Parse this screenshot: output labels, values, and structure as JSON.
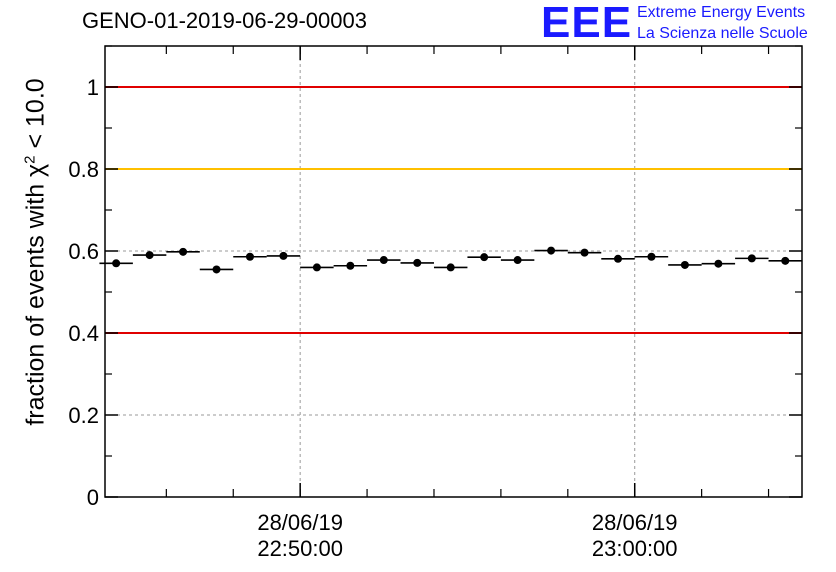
{
  "header": {
    "title": "GENO-01-2019-06-29-00003",
    "logo_mark": "EEE",
    "logo_line1": "Extreme Energy Events",
    "logo_line2": "La Scienza nelle Scuole"
  },
  "colors": {
    "limit_red": "#e00000",
    "limit_yellow": "#ffc000",
    "logo_blue": "#1a1aff",
    "points": "#000000"
  },
  "chart_data": {
    "type": "scatter",
    "title": "GENO-01-2019-06-29-00003",
    "ylabel_prefix": "fraction of events with χ",
    "ylabel_sup": "2",
    "ylabel_suffix": " < 10.0",
    "ylim": [
      0,
      1.1
    ],
    "yticks": [
      0,
      0.2,
      0.4,
      0.6,
      0.8,
      1
    ],
    "ytick_labels": [
      "0",
      "0.2",
      "0.4",
      "0.6",
      "0.8",
      "1"
    ],
    "xlim": [
      "2019-06-28 22:44:10",
      "2019-06-28 23:05:00"
    ],
    "xticks": [
      {
        "x": "2019-06-28 22:50:00",
        "label_date": "28/06/19",
        "label_time": "22:50:00"
      },
      {
        "x": "2019-06-28 23:00:00",
        "label_date": "28/06/19",
        "label_time": "23:00:00"
      }
    ],
    "bin_width_minutes": 1,
    "x": [
      "2019-06-28 22:44:30",
      "2019-06-28 22:45:30",
      "2019-06-28 22:46:30",
      "2019-06-28 22:47:30",
      "2019-06-28 22:48:30",
      "2019-06-28 22:49:30",
      "2019-06-28 22:50:30",
      "2019-06-28 22:51:30",
      "2019-06-28 22:52:30",
      "2019-06-28 22:53:30",
      "2019-06-28 22:54:30",
      "2019-06-28 22:55:30",
      "2019-06-28 22:56:30",
      "2019-06-28 22:57:30",
      "2019-06-28 22:58:30",
      "2019-06-28 22:59:30",
      "2019-06-28 23:00:30",
      "2019-06-28 23:01:30",
      "2019-06-28 23:02:30",
      "2019-06-28 23:03:30",
      "2019-06-28 23:04:30"
    ],
    "y": [
      0.57,
      0.59,
      0.598,
      0.555,
      0.586,
      0.588,
      0.56,
      0.564,
      0.578,
      0.571,
      0.56,
      0.585,
      0.578,
      0.601,
      0.596,
      0.581,
      0.586,
      0.566,
      0.569,
      0.582,
      0.576
    ],
    "reference_lines": [
      {
        "y": 1.0,
        "color": "#e00000"
      },
      {
        "y": 0.8,
        "color": "#ffc000"
      },
      {
        "y": 0.4,
        "color": "#e00000"
      }
    ],
    "grid": true
  }
}
